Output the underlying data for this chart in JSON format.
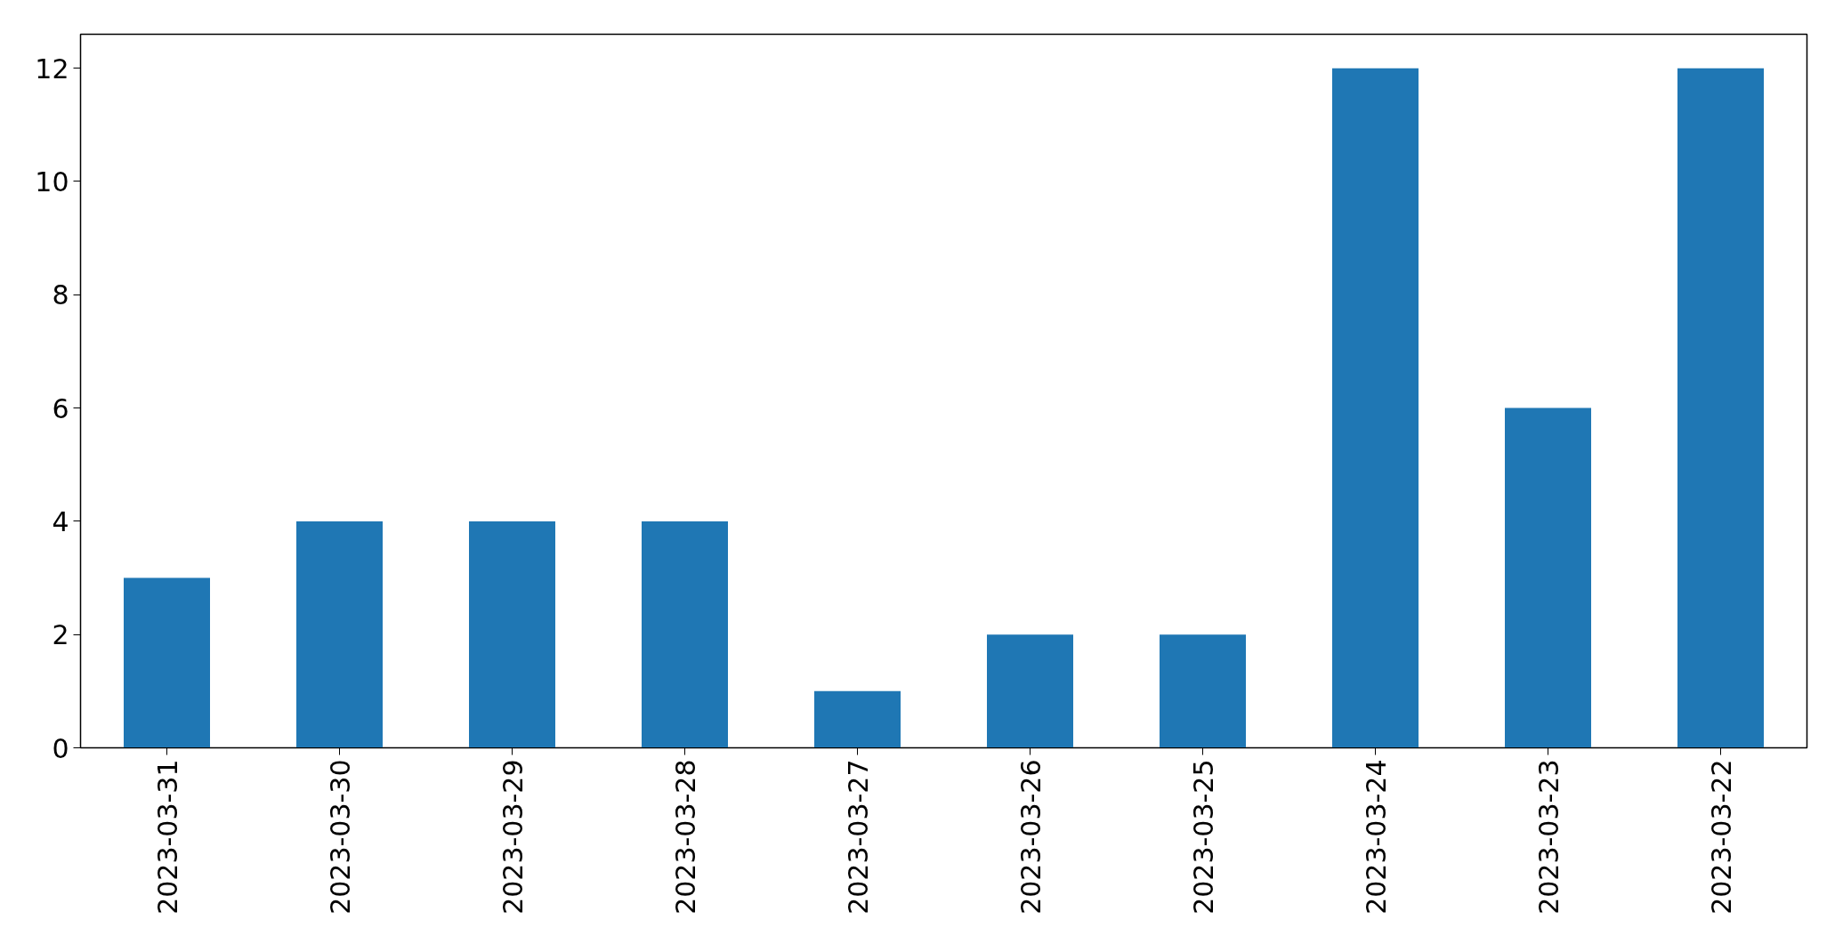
{
  "chart_data": {
    "type": "bar",
    "categories": [
      "2023-03-31",
      "2023-03-30",
      "2023-03-29",
      "2023-03-28",
      "2023-03-27",
      "2023-03-26",
      "2023-03-25",
      "2023-03-24",
      "2023-03-23",
      "2023-03-22"
    ],
    "values": [
      3,
      4,
      4,
      4,
      1,
      2,
      2,
      12,
      6,
      12
    ],
    "color": "#1f77b4",
    "ylim": [
      0,
      12.6
    ],
    "yticks": [
      0,
      2,
      4,
      6,
      8,
      10,
      12
    ],
    "grid": false
  }
}
